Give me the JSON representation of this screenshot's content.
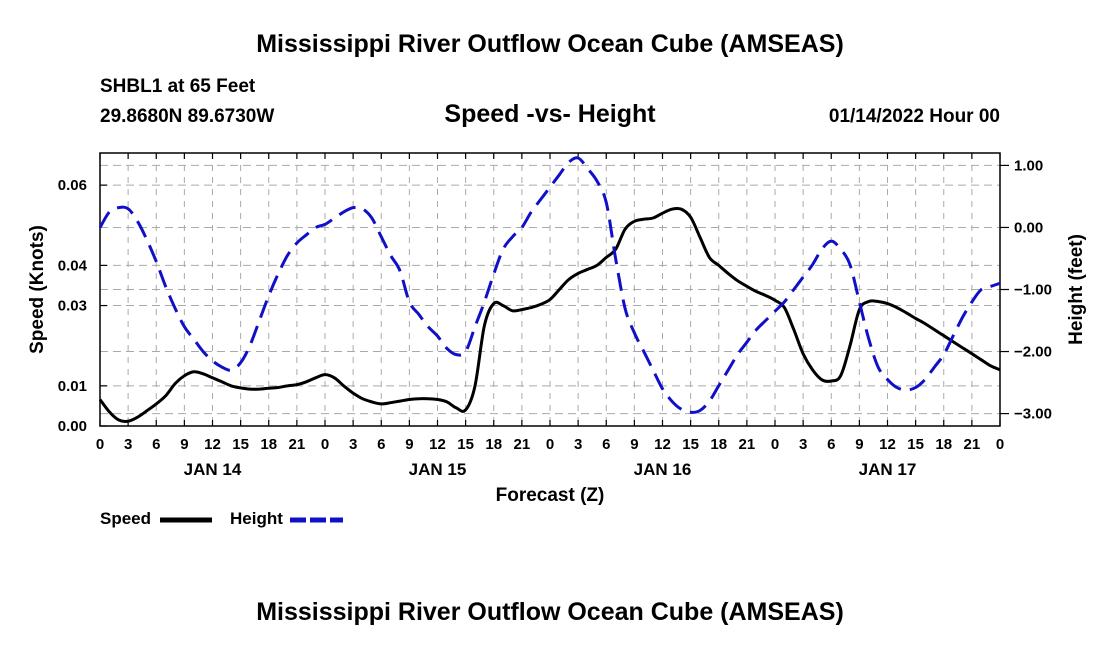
{
  "header": {
    "title": "Mississippi River Outflow Ocean Cube (AMSEAS)",
    "station": "SHBL1 at 65 Feet",
    "coords": "29.8680N  89.6730W",
    "subtitle": "Speed -vs- Height",
    "datetime": "01/14/2022 Hour 00"
  },
  "footer": {
    "title": "Mississippi River Outflow Ocean Cube (AMSEAS)"
  },
  "colors": {
    "speed": "#000000",
    "height": "#1010c8",
    "grid": "#aaaaaa"
  },
  "chart_data": {
    "type": "line",
    "title": "Speed -vs- Height",
    "xlabel": "Forecast (Z)",
    "ylabel": "Speed (Knots)",
    "y2label": "Height (feet)",
    "xlim": [
      0,
      96
    ],
    "ylim": [
      0,
      0.068
    ],
    "y2lim": [
      -3.2,
      1.2
    ],
    "x_ticks": [
      0,
      3,
      6,
      9,
      12,
      15,
      18,
      21,
      24,
      27,
      30,
      33,
      36,
      39,
      42,
      45,
      48,
      51,
      54,
      57,
      60,
      63,
      66,
      69,
      72,
      75,
      78,
      81,
      84,
      87,
      90,
      93,
      96
    ],
    "x_tick_labels": [
      "0",
      "3",
      "6",
      "9",
      "12",
      "15",
      "18",
      "21",
      "0",
      "3",
      "6",
      "9",
      "12",
      "15",
      "18",
      "21",
      "0",
      "3",
      "6",
      "9",
      "12",
      "15",
      "18",
      "21",
      "0",
      "3",
      "6",
      "9",
      "12",
      "15",
      "18",
      "21",
      "0"
    ],
    "day_labels": [
      {
        "x": 12,
        "label": "JAN 14"
      },
      {
        "x": 36,
        "label": "JAN 15"
      },
      {
        "x": 60,
        "label": "JAN 16"
      },
      {
        "x": 84,
        "label": "JAN 17"
      }
    ],
    "y_ticks": [
      0,
      0.01,
      0.03,
      0.04,
      0.06
    ],
    "y_tick_labels": [
      "0.00",
      "0.01",
      "0.03",
      "0.04",
      "0.06"
    ],
    "y2_ticks": [
      1,
      0,
      -1,
      -2,
      -3
    ],
    "y2_tick_labels": [
      "1.00",
      "0.00",
      "−1.00",
      "−2.00",
      "−3.00"
    ],
    "grid": true,
    "legend": [
      "Speed",
      "Height"
    ],
    "series": [
      {
        "name": "Speed",
        "axis": "left",
        "style": "solid",
        "x": [
          0,
          1,
          2,
          3,
          4,
          5,
          6,
          7,
          8,
          9,
          10,
          11,
          12,
          13,
          14,
          15,
          16,
          17,
          18,
          19,
          20,
          21,
          22,
          23,
          24,
          25,
          26,
          27,
          28,
          29,
          30,
          31,
          32,
          33,
          34,
          35,
          36,
          37,
          38,
          39,
          40,
          41,
          42,
          43,
          44,
          45,
          46,
          47,
          48,
          49,
          50,
          51,
          52,
          53,
          54,
          55,
          56,
          57,
          58,
          59,
          60,
          61,
          62,
          63,
          64,
          65,
          66,
          67,
          68,
          69,
          70,
          71,
          72,
          73,
          74,
          75,
          76,
          77,
          78,
          79,
          80,
          81,
          82,
          83,
          84,
          85,
          86,
          87,
          88,
          89,
          90,
          91,
          92,
          93,
          94,
          95,
          96
        ],
        "values": [
          0.0066,
          0.0035,
          0.0015,
          0.0012,
          0.0022,
          0.0038,
          0.0055,
          0.0075,
          0.0105,
          0.0125,
          0.0135,
          0.013,
          0.012,
          0.011,
          0.01,
          0.0095,
          0.0092,
          0.0092,
          0.0094,
          0.0096,
          0.01,
          0.0103,
          0.011,
          0.012,
          0.0128,
          0.012,
          0.01,
          0.0082,
          0.0068,
          0.006,
          0.0055,
          0.0058,
          0.0062,
          0.0066,
          0.0068,
          0.0068,
          0.0066,
          0.006,
          0.0045,
          0.004,
          0.01,
          0.025,
          0.0305,
          0.03,
          0.0287,
          0.029,
          0.0295,
          0.0303,
          0.0315,
          0.034,
          0.0365,
          0.038,
          0.039,
          0.04,
          0.042,
          0.044,
          0.049,
          0.051,
          0.0515,
          0.0518,
          0.053,
          0.054,
          0.054,
          0.052,
          0.047,
          0.042,
          0.04,
          0.038,
          0.0362,
          0.0348,
          0.0335,
          0.0325,
          0.0313,
          0.0295,
          0.024,
          0.018,
          0.014,
          0.0115,
          0.0112,
          0.0125,
          0.02,
          0.029,
          0.031,
          0.031,
          0.0305,
          0.0295,
          0.0282,
          0.0268,
          0.0255,
          0.024,
          0.0225,
          0.021,
          0.0195,
          0.018,
          0.0165,
          0.015,
          0.014
        ]
      },
      {
        "name": "Height",
        "axis": "right",
        "style": "dashed",
        "x": [
          0,
          1,
          2,
          3,
          4,
          5,
          6,
          7,
          8,
          9,
          10,
          11,
          12,
          13,
          14,
          15,
          16,
          17,
          18,
          19,
          20,
          21,
          22,
          23,
          24,
          25,
          26,
          27,
          28,
          29,
          30,
          31,
          32,
          33,
          34,
          35,
          36,
          37,
          38,
          39,
          40,
          41,
          42,
          43,
          44,
          45,
          46,
          47,
          48,
          49,
          50,
          51,
          52,
          53,
          54,
          55,
          56,
          57,
          58,
          59,
          60,
          61,
          62,
          63,
          64,
          65,
          66,
          67,
          68,
          69,
          70,
          71,
          72,
          73,
          74,
          75,
          76,
          77,
          78,
          79,
          80,
          81,
          82,
          83,
          84,
          85,
          86,
          87,
          88,
          89,
          90,
          91,
          92,
          93,
          94,
          95,
          96
        ],
        "values": [
          0.0,
          0.25,
          0.32,
          0.3,
          0.1,
          -0.2,
          -0.55,
          -0.95,
          -1.3,
          -1.6,
          -1.8,
          -2.0,
          -2.15,
          -2.25,
          -2.3,
          -2.18,
          -1.9,
          -1.5,
          -1.1,
          -0.75,
          -0.45,
          -0.25,
          -0.12,
          0.0,
          0.05,
          0.15,
          0.25,
          0.32,
          0.3,
          0.15,
          -0.15,
          -0.45,
          -0.7,
          -1.2,
          -1.4,
          -1.6,
          -1.75,
          -1.95,
          -2.05,
          -2.0,
          -1.6,
          -1.2,
          -0.75,
          -0.35,
          -0.15,
          0.0,
          0.25,
          0.45,
          0.65,
          0.85,
          1.05,
          1.12,
          0.95,
          0.75,
          0.4,
          -0.5,
          -1.3,
          -1.7,
          -2.0,
          -2.3,
          -2.6,
          -2.8,
          -2.93,
          -2.98,
          -2.95,
          -2.8,
          -2.55,
          -2.3,
          -2.05,
          -1.85,
          -1.65,
          -1.5,
          -1.35,
          -1.2,
          -1.0,
          -0.8,
          -0.6,
          -0.35,
          -0.22,
          -0.35,
          -0.6,
          -1.2,
          -1.8,
          -2.25,
          -2.45,
          -2.58,
          -2.62,
          -2.58,
          -2.45,
          -2.25,
          -2.05,
          -1.75,
          -1.45,
          -1.2,
          -1.0,
          -0.95,
          -0.9
        ]
      }
    ]
  }
}
